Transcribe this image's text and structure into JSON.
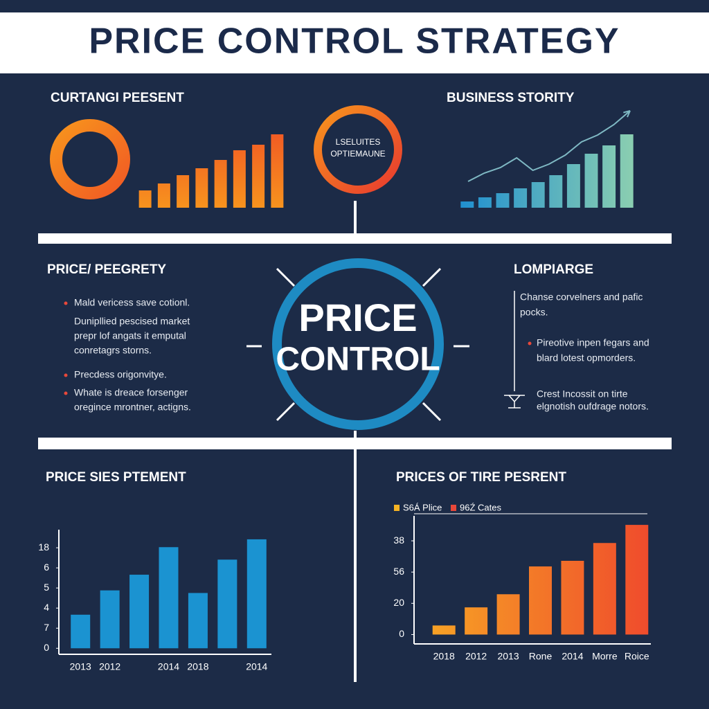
{
  "header": {
    "title": "PRICE CONTROL STRATEGY"
  },
  "top_left": {
    "title": "CURTANGI PEESENT",
    "chart": {
      "type": "bar",
      "values": [
        25,
        35,
        47,
        57,
        69,
        83,
        91,
        106
      ],
      "ylim": [
        0,
        110
      ],
      "gradient": [
        "#f7931e",
        "#f15a24"
      ]
    }
  },
  "top_center": {
    "ring_lines": [
      "LSELUITES",
      "OPTIEMAUNE"
    ]
  },
  "top_right": {
    "title": "BUSINESS STORITY",
    "chart": {
      "type": "bar_line",
      "values": [
        9,
        15,
        21,
        28,
        37,
        47,
        63,
        78,
        90,
        106
      ],
      "ylim": [
        0,
        110
      ],
      "line_values": [
        38,
        50,
        58,
        72,
        54,
        63,
        76,
        95,
        105,
        120,
        140
      ],
      "line_ylim": [
        0,
        145
      ],
      "gradient": [
        "#1f8fd0",
        "#8ccfb0"
      ],
      "line_color": "#7fb9c4"
    }
  },
  "middle_left": {
    "title": "PRICE/ PEEGRETY",
    "bullets": [
      {
        "dot": true,
        "lines": [
          "Mald vericess save cotionl."
        ]
      },
      {
        "dot": false,
        "lines": [
          "Dunipllied pescised market",
          "prepr lof angats it emputal",
          "conretagrs storns."
        ]
      },
      {
        "dot": true,
        "lines": [
          "Precdess origonvitye."
        ]
      },
      {
        "dot": true,
        "lines": [
          "Whate is dreace forsenger",
          "oregince mrontner, actigns."
        ]
      }
    ]
  },
  "center": {
    "lines": [
      "PRICE",
      "CONTROL"
    ]
  },
  "middle_right": {
    "title": "LOMPIARGE",
    "items": [
      {
        "marker": "none",
        "lines": [
          "Chanse corvelners and pafic",
          "pocks."
        ]
      },
      {
        "marker": "dot",
        "lines": [
          "Pireotive inpen fegars and",
          "blard lotest opmorders."
        ]
      },
      {
        "marker": "icon",
        "lines": [
          "Crest Incossit on tirte",
          "elgnotish oufdrage notors."
        ]
      }
    ]
  },
  "bottom_left": {
    "title": "PRICE SIES PTEMENT",
    "chart": {
      "type": "bar",
      "categories": [
        "2013",
        "2012",
        null,
        "2014",
        "2018",
        null,
        "2014"
      ],
      "values": [
        1.67,
        2.88,
        3.66,
        5.03,
        2.75,
        4.41,
        5.42
      ],
      "ylim": [
        -0.3,
        5.9
      ],
      "yticks": [
        0,
        {
          "value": 1,
          "label": "7"
        },
        {
          "value": 2,
          "label": "4"
        },
        {
          "value": 3,
          "label": "5"
        },
        {
          "value": 4,
          "label": "6"
        },
        {
          "value": 5,
          "label": "18"
        }
      ],
      "color": "#1b93d1"
    }
  },
  "bottom_right": {
    "title": "PRICES OF TIRE PESRENT",
    "legend": [
      {
        "name": "S6Á Plice",
        "color": "#f5b324"
      },
      {
        "name": "96Ź Cates",
        "color": "#e8483a"
      }
    ],
    "chart": {
      "type": "bar",
      "categories": [
        "2018",
        "2012",
        "2013",
        "Rone",
        "2014",
        "Morre",
        "Roice"
      ],
      "values": [
        0.29,
        0.87,
        1.29,
        2.18,
        2.36,
        2.93,
        3.51
      ],
      "ylim": [
        -0.3,
        3.8
      ],
      "yticks": [
        0,
        {
          "value": 1,
          "label": "20"
        },
        {
          "value": 2,
          "label": "56"
        },
        {
          "value": 3,
          "label": "38"
        }
      ],
      "gradient": [
        "#f7a325",
        "#ef4a2c"
      ]
    }
  }
}
